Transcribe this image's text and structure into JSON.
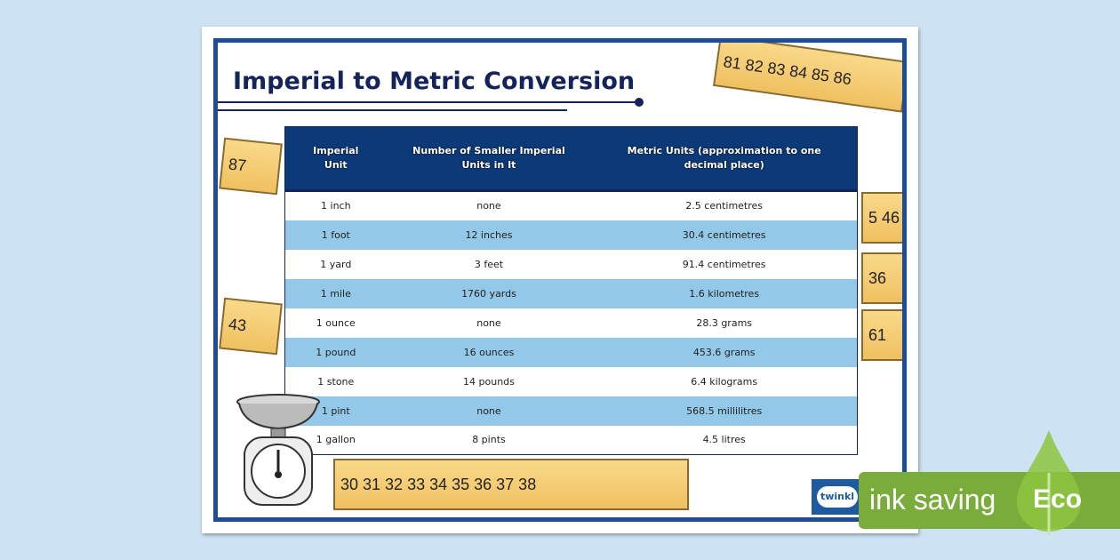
{
  "title": "Imperial to Metric Conversion",
  "table": {
    "headers": [
      "Imperial Unit",
      "Number of Smaller Imperial Units in It",
      "Metric Units (approximation to one decimal place)"
    ],
    "rows": [
      [
        "1 inch",
        "none",
        "2.5 centimetres"
      ],
      [
        "1 foot",
        "12 inches",
        "30.4 centimetres"
      ],
      [
        "1 yard",
        "3 feet",
        "91.4 centimetres"
      ],
      [
        "1 mile",
        "1760 yards",
        "1.6 kilometres"
      ],
      [
        "1 ounce",
        "none",
        "28.3 grams"
      ],
      [
        "1 pound",
        "16 ounces",
        "453.6 grams"
      ],
      [
        "1 stone",
        "14 pounds",
        "6.4 kilograms"
      ],
      [
        "1 pint",
        "none",
        "568.5 millilitres"
      ],
      [
        "1 gallon",
        "8 pints",
        "4.5 litres"
      ]
    ]
  },
  "rulers": [
    "81 82 83 84 85 86",
    "87",
    "5 46",
    "36",
    "61",
    "43",
    "30 31 32 33 34 35 36 37 38"
  ],
  "logo": "twinkl",
  "badge": {
    "text": "ink saving",
    "eco": "Eco",
    "color": "#7aac3c"
  },
  "colors": {
    "header": "#0c3a78",
    "row_alt": "#93c8e8",
    "frame": "#1e4d98"
  }
}
